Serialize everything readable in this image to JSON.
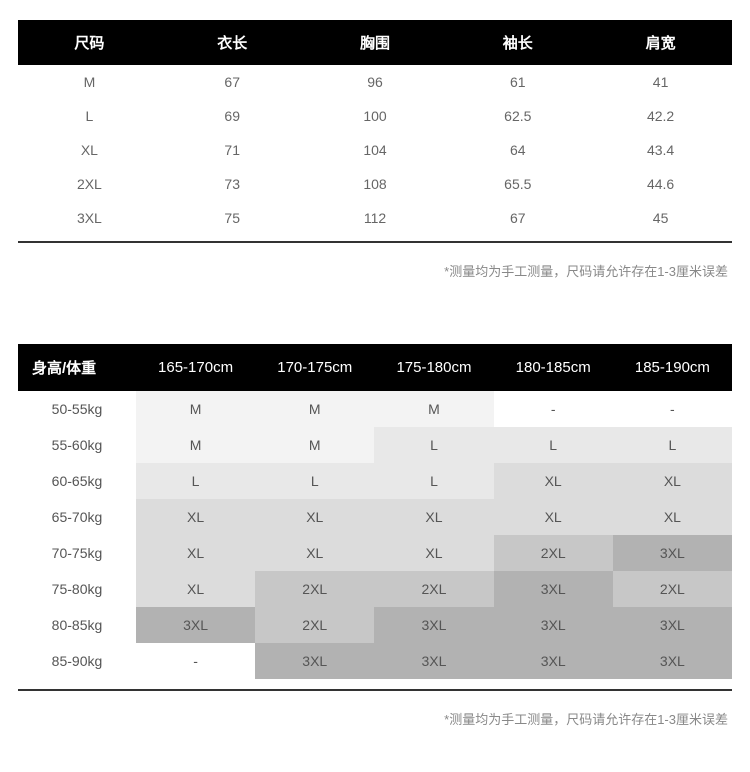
{
  "size_table": {
    "headers": [
      "尺码",
      "衣长",
      "胸围",
      "袖长",
      "肩宽"
    ],
    "rows": [
      [
        "M",
        "67",
        "96",
        "61",
        "41"
      ],
      [
        "L",
        "69",
        "100",
        "62.5",
        "42.2"
      ],
      [
        "XL",
        "71",
        "104",
        "64",
        "43.4"
      ],
      [
        "2XL",
        "73",
        "108",
        "65.5",
        "44.6"
      ],
      [
        "3XL",
        "75",
        "112",
        "67",
        "45"
      ]
    ]
  },
  "note1": "*测量均为手工测量，尺码请允许存在1-3厘米误差",
  "fit_table": {
    "corner_header": "身高/体重",
    "col_headers": [
      "165-170cm",
      "170-175cm",
      "175-180cm",
      "180-185cm",
      "185-190cm"
    ],
    "row_headers": [
      "50-55kg",
      "55-60kg",
      "60-65kg",
      "65-70kg",
      "70-75kg",
      "75-80kg",
      "80-85kg",
      "85-90kg"
    ],
    "cells": [
      [
        "M",
        "M",
        "M",
        "-",
        "-"
      ],
      [
        "M",
        "M",
        "L",
        "L",
        "L"
      ],
      [
        "L",
        "L",
        "L",
        "XL",
        "XL"
      ],
      [
        "XL",
        "XL",
        "XL",
        "XL",
        "XL"
      ],
      [
        "XL",
        "XL",
        "XL",
        "2XL",
        "3XL"
      ],
      [
        "XL",
        "2XL",
        "2XL",
        "3XL",
        "2XL"
      ],
      [
        "3XL",
        "2XL",
        "3XL",
        "3XL",
        "3XL"
      ],
      [
        "-",
        "3XL",
        "3XL",
        "3XL",
        "3XL"
      ]
    ],
    "shade_levels": [
      [
        1,
        1,
        1,
        0,
        0
      ],
      [
        1,
        1,
        2,
        2,
        2
      ],
      [
        2,
        2,
        2,
        3,
        3
      ],
      [
        3,
        3,
        3,
        3,
        3
      ],
      [
        3,
        3,
        3,
        4,
        5
      ],
      [
        3,
        4,
        4,
        5,
        4
      ],
      [
        5,
        4,
        5,
        5,
        5
      ],
      [
        0,
        5,
        5,
        5,
        5
      ]
    ],
    "shade_colors": {
      "0": "#ffffff",
      "1": "#f3f3f3",
      "2": "#e8e8e8",
      "3": "#dcdcdc",
      "4": "#c7c7c7",
      "5": "#b2b2b2"
    }
  },
  "note2": "*测量均为手工测量，尺码请允许存在1-3厘米误差"
}
